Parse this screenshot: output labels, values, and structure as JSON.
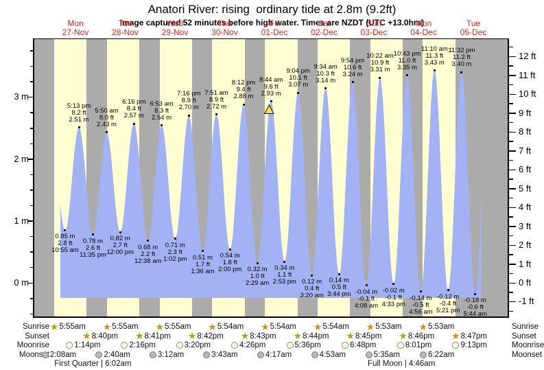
{
  "title": "Anatori River: rising  ordinary tide at 2.8m (9.2ft)",
  "subtitle": "Image captured 52 minutes before high water. Times are NZDT (UTC +13.0hrs)",
  "chart_data": {
    "type": "area",
    "title": "Anatori River: rising ordinary tide at 2.8m (9.2ft)",
    "ylabel_left": "meters",
    "ylabel_right": "feet",
    "y_axis_left": {
      "tick_values_m": [
        0,
        1,
        2,
        3
      ],
      "unit_suffix": " m"
    },
    "y_axis_right": {
      "tick_min_ft": -1,
      "tick_max_ft": 12,
      "unit_suffix": " ft"
    },
    "legend_position": "none",
    "grid": false,
    "days": [
      {
        "name": "Mon",
        "date": "27-Nov"
      },
      {
        "name": "Tue",
        "date": "28-Nov"
      },
      {
        "name": "Wed",
        "date": "29-Nov"
      },
      {
        "name": "Thu",
        "date": "30-Nov"
      },
      {
        "name": "Fri",
        "date": "01-Dec"
      },
      {
        "name": "Sat",
        "date": "02-Dec"
      },
      {
        "name": "Sun",
        "date": "03-Dec"
      },
      {
        "name": "Mon",
        "date": "04-Dec"
      },
      {
        "name": "Tue",
        "date": "05-Dec"
      }
    ],
    "tides": [
      {
        "d": 0,
        "time": "10:55 am",
        "type": "low",
        "m": 0.85,
        "ft": 2.8
      },
      {
        "d": 0,
        "time": "5:13 pm",
        "type": "high",
        "m": 2.51,
        "ft": 8.2
      },
      {
        "d": 0,
        "time": "11:35 pm",
        "type": "low",
        "m": 0.78,
        "ft": 2.6
      },
      {
        "d": 1,
        "time": "5:50 am",
        "type": "high",
        "m": 2.43,
        "ft": 8.0
      },
      {
        "d": 1,
        "time": "12:00 pm",
        "type": "low",
        "m": 0.82,
        "ft": 2.7
      },
      {
        "d": 1,
        "time": "6:16 pm",
        "type": "high",
        "m": 2.57,
        "ft": 8.4
      },
      {
        "d": 2,
        "time": "12:38 am",
        "type": "low",
        "m": 0.68,
        "ft": 2.2
      },
      {
        "d": 2,
        "time": "6:53 am",
        "type": "high",
        "m": 2.54,
        "ft": 8.3
      },
      {
        "d": 2,
        "time": "1:02 pm",
        "type": "low",
        "m": 0.71,
        "ft": 2.3
      },
      {
        "d": 2,
        "time": "7:16 pm",
        "type": "high",
        "m": 2.7,
        "ft": 8.9
      },
      {
        "d": 3,
        "time": "1:36 am",
        "type": "low",
        "m": 0.51,
        "ft": 1.7
      },
      {
        "d": 3,
        "time": "7:51 am",
        "type": "high",
        "m": 2.72,
        "ft": 8.9
      },
      {
        "d": 3,
        "time": "2:00 pm",
        "type": "low",
        "m": 0.54,
        "ft": 1.8
      },
      {
        "d": 3,
        "time": "8:12 pm",
        "type": "high",
        "m": 2.88,
        "ft": 9.4
      },
      {
        "d": 4,
        "time": "2:29 am",
        "type": "low",
        "m": 0.32,
        "ft": 1.0
      },
      {
        "d": 4,
        "time": "8:44 am",
        "type": "high",
        "m": 2.93,
        "ft": 9.6,
        "current": true
      },
      {
        "d": 4,
        "time": "2:53 pm",
        "type": "low",
        "m": 0.34,
        "ft": 1.1
      },
      {
        "d": 4,
        "time": "9:04 pm",
        "type": "high",
        "m": 3.07,
        "ft": 10.1
      },
      {
        "d": 5,
        "time": "3:20 am",
        "type": "low",
        "m": 0.12,
        "ft": 0.4
      },
      {
        "d": 5,
        "time": "9:34 am",
        "type": "high",
        "m": 3.14,
        "ft": 10.3
      },
      {
        "d": 5,
        "time": "3:44 pm",
        "type": "low",
        "m": 0.14,
        "ft": 0.5
      },
      {
        "d": 5,
        "time": "9:54 pm",
        "type": "high",
        "m": 3.24,
        "ft": 10.6
      },
      {
        "d": 6,
        "time": "4:08 am",
        "type": "low",
        "m": -0.04,
        "ft": -0.1
      },
      {
        "d": 6,
        "time": "10:22 am",
        "type": "high",
        "m": 3.31,
        "ft": 10.9
      },
      {
        "d": 6,
        "time": "4:33 pm",
        "type": "low",
        "m": -0.02,
        "ft": -0.1
      },
      {
        "d": 6,
        "time": "10:43 pm",
        "type": "high",
        "m": 3.35,
        "ft": 11.0
      },
      {
        "d": 7,
        "time": "4:56 am",
        "type": "low",
        "m": -0.14,
        "ft": -0.5
      },
      {
        "d": 7,
        "time": "11:10 am",
        "type": "high",
        "m": 3.43,
        "ft": 11.3
      },
      {
        "d": 7,
        "time": "5:21 pm",
        "type": "low",
        "m": -0.12,
        "ft": -0.4
      },
      {
        "d": 7,
        "time": "11:32 pm",
        "type": "high",
        "m": 3.4,
        "ft": 11.2
      },
      {
        "d": 8,
        "time": "5:44 am",
        "type": "low",
        "m": -0.18,
        "ft": -0.6
      }
    ],
    "current_marker": {
      "d": 4,
      "time": "7:52 am",
      "m": 2.8
    },
    "astro": {
      "rows": [
        {
          "key": "sunrise",
          "label": "Sunrise",
          "icon": "sun-star",
          "times": [
            "5:55am",
            "5:55am",
            "5:55am",
            "5:54am",
            "5:54am",
            "5:54am",
            "5:53am",
            "5:53am"
          ]
        },
        {
          "key": "sunset",
          "label": "Sunset",
          "icon": "sun-star",
          "times": [
            "8:40pm",
            "8:41pm",
            "8:42pm",
            "8:43pm",
            "8:44pm",
            "8:45pm",
            "8:46pm",
            "8:47pm"
          ]
        },
        {
          "key": "moonrise",
          "label": "Moonrise",
          "icon": "moon-light",
          "times": [
            "1:14pm",
            "2:16pm",
            "3:20pm",
            "4:26pm",
            "5:36pm",
            "6:48pm",
            "8:01pm",
            "9:13pm"
          ]
        },
        {
          "key": "moonset",
          "label": "Moonset",
          "icon": "moon-dark",
          "times": [
            "2:08am",
            "2:40am",
            "3:12am",
            "3:43am",
            "4:17am",
            "4:53am",
            "5:35am",
            "6:22am"
          ]
        }
      ]
    },
    "moon_phases": [
      {
        "label": "First Quarter",
        "time": "6:02am",
        "d": 0
      },
      {
        "label": "Full Moon",
        "time": "4:46am",
        "d": 6
      }
    ],
    "colors": {
      "night_band": "#ababab",
      "day_band": "#ffffd2",
      "tide_fill": "#a2b2f4",
      "day_label": "#f22018",
      "marker_fill": "#ffe34d",
      "star": "#c79310"
    }
  }
}
